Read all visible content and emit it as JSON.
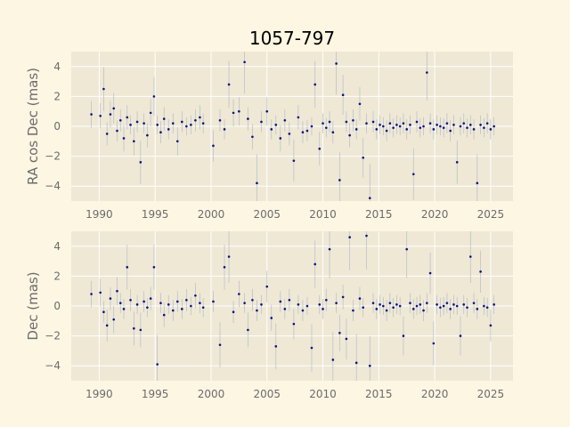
{
  "chart_data": [
    {
      "type": "scatter",
      "title": "1057-797",
      "xlabel": "",
      "ylabel": "RA cos Dec (mas)",
      "xlim": [
        1987.5,
        2027.0
      ],
      "ylim": [
        -5,
        5
      ],
      "xticks": [
        1990,
        1995,
        2000,
        2005,
        2010,
        2015,
        2020,
        2025
      ],
      "yticks": [
        -4,
        -2,
        0,
        2,
        4
      ],
      "grid": true,
      "series": [
        {
          "x": [
            1989.3,
            1990.1,
            1990.4,
            1990.7,
            1991.0,
            1991.3,
            1991.6,
            1991.9,
            1992.2,
            1992.5,
            1992.8,
            1993.1,
            1993.4,
            1993.7,
            1994.0,
            1994.3,
            1994.6,
            1994.9,
            1995.2,
            1995.5,
            1995.8,
            1996.2,
            1996.6,
            1997.0,
            1997.4,
            1997.8,
            1998.2,
            1998.6,
            1999.0,
            1999.3,
            2000.2,
            2000.8,
            2001.2,
            2001.6,
            2002.0,
            2002.5,
            2003.0,
            2003.3,
            2003.7,
            2004.1,
            2004.5,
            2005.0,
            2005.4,
            2005.8,
            2006.2,
            2006.6,
            2007.0,
            2007.4,
            2007.8,
            2008.2,
            2008.6,
            2009.0,
            2009.3,
            2009.7,
            2010.0,
            2010.3,
            2010.6,
            2010.9,
            2011.2,
            2011.5,
            2011.8,
            2012.1,
            2012.4,
            2012.7,
            2013.0,
            2013.3,
            2013.6,
            2013.9,
            2014.2,
            2014.5,
            2014.8,
            2015.1,
            2015.4,
            2015.7,
            2016.0,
            2016.3,
            2016.6,
            2016.9,
            2017.2,
            2017.5,
            2017.8,
            2018.1,
            2018.4,
            2018.7,
            2019.0,
            2019.3,
            2019.6,
            2019.9,
            2020.2,
            2020.5,
            2020.8,
            2021.1,
            2021.4,
            2021.7,
            2022.0,
            2022.3,
            2022.6,
            2022.9,
            2023.2,
            2023.5,
            2023.8,
            2024.1,
            2024.4,
            2024.7,
            2025.0,
            2025.3
          ],
          "values": [
            0.8,
            0.7,
            2.5,
            -0.5,
            0.8,
            1.2,
            -0.3,
            0.4,
            -0.8,
            0.6,
            0.1,
            -1.0,
            0.3,
            -2.4,
            0.2,
            -0.6,
            0.9,
            2.0,
            0.1,
            -0.4,
            0.5,
            -0.2,
            0.2,
            -1.0,
            0.3,
            0.0,
            0.1,
            0.4,
            0.6,
            0.2,
            -1.3,
            0.4,
            -0.2,
            2.8,
            0.9,
            1.0,
            4.3,
            0.5,
            -0.7,
            -3.8,
            0.3,
            1.0,
            -0.2,
            0.1,
            -0.8,
            0.4,
            -0.5,
            -2.3,
            0.6,
            -0.4,
            -0.3,
            0.0,
            2.8,
            -1.5,
            0.2,
            -0.1,
            0.3,
            -0.4,
            4.2,
            -3.6,
            2.1,
            0.3,
            -0.6,
            0.4,
            -0.2,
            1.5,
            -2.1,
            0.2,
            -4.8,
            0.3,
            -0.2,
            0.1,
            0.0,
            -0.3,
            0.2,
            -0.1,
            0.1,
            0.0,
            0.2,
            -0.2,
            0.1,
            -3.2,
            0.3,
            -0.1,
            0.0,
            3.6,
            0.2,
            -0.2,
            0.1,
            0.0,
            -0.1,
            0.2,
            -0.3,
            0.1,
            -2.4,
            0.0,
            0.2,
            -0.1,
            0.1,
            -0.2,
            -3.8,
            0.1,
            -0.1,
            0.2,
            -0.2,
            0.0
          ]
        }
      ]
    },
    {
      "type": "scatter",
      "title": "",
      "xlabel": "",
      "ylabel": "Dec (mas)",
      "xlim": [
        1987.5,
        2027.0
      ],
      "ylim": [
        -5,
        5
      ],
      "xticks": [
        1990,
        1995,
        2000,
        2005,
        2010,
        2015,
        2020,
        2025
      ],
      "yticks": [
        -4,
        -2,
        0,
        2,
        4
      ],
      "grid": true,
      "series": [
        {
          "x": [
            1989.3,
            1990.1,
            1990.4,
            1990.7,
            1991.0,
            1991.3,
            1991.6,
            1991.9,
            1992.2,
            1992.5,
            1992.8,
            1993.1,
            1993.4,
            1993.7,
            1994.0,
            1994.3,
            1994.6,
            1994.9,
            1995.2,
            1995.5,
            1995.8,
            1996.2,
            1996.6,
            1997.0,
            1997.4,
            1997.8,
            1998.2,
            1998.6,
            1999.0,
            1999.3,
            2000.2,
            2000.8,
            2001.2,
            2001.6,
            2002.0,
            2002.5,
            2003.0,
            2003.3,
            2003.7,
            2004.1,
            2004.5,
            2005.0,
            2005.4,
            2005.8,
            2006.2,
            2006.6,
            2007.0,
            2007.4,
            2007.8,
            2008.2,
            2008.6,
            2009.0,
            2009.3,
            2009.7,
            2010.0,
            2010.3,
            2010.6,
            2010.9,
            2011.2,
            2011.5,
            2011.8,
            2012.1,
            2012.4,
            2012.7,
            2013.0,
            2013.3,
            2013.6,
            2013.9,
            2014.2,
            2014.5,
            2014.8,
            2015.1,
            2015.4,
            2015.7,
            2016.0,
            2016.3,
            2016.6,
            2016.9,
            2017.2,
            2017.5,
            2017.8,
            2018.1,
            2018.4,
            2018.7,
            2019.0,
            2019.3,
            2019.6,
            2019.9,
            2020.2,
            2020.5,
            2020.8,
            2021.1,
            2021.4,
            2021.7,
            2022.0,
            2022.3,
            2022.6,
            2022.9,
            2023.2,
            2023.5,
            2023.8,
            2024.1,
            2024.4,
            2024.7,
            2025.0,
            2025.3
          ],
          "values": [
            0.8,
            0.9,
            -0.4,
            -1.3,
            0.5,
            -0.9,
            1.0,
            0.2,
            -0.2,
            2.6,
            0.4,
            -1.5,
            0.1,
            -1.6,
            0.3,
            -0.1,
            0.5,
            2.6,
            -3.9,
            0.2,
            -0.6,
            0.1,
            -0.3,
            0.3,
            -0.2,
            0.4,
            0.0,
            0.7,
            0.2,
            -0.1,
            0.3,
            -2.6,
            2.6,
            3.3,
            -0.4,
            0.8,
            0.2,
            -1.6,
            0.4,
            -0.3,
            0.1,
            1.3,
            -0.8,
            -2.7,
            0.3,
            -0.2,
            0.4,
            -1.2,
            0.1,
            -0.3,
            0.0,
            -2.8,
            2.8,
            0.1,
            -0.2,
            0.4,
            3.8,
            -3.6,
            0.2,
            -1.8,
            0.6,
            -2.2,
            4.6,
            -0.3,
            -3.8,
            0.5,
            -0.1,
            4.7,
            -4.0,
            0.2,
            -0.2,
            0.1,
            0.0,
            -0.3,
            0.2,
            -0.1,
            0.1,
            0.0,
            -2.0,
            3.8,
            0.2,
            -0.2,
            0.0,
            0.1,
            -0.3,
            0.2,
            2.2,
            -2.5,
            0.1,
            -0.1,
            0.0,
            0.2,
            -0.2,
            0.1,
            0.0,
            -2.0,
            0.1,
            -0.1,
            3.3,
            0.2,
            -0.2,
            2.3,
            0.0,
            -0.1,
            -1.3,
            0.1
          ]
        }
      ]
    }
  ]
}
